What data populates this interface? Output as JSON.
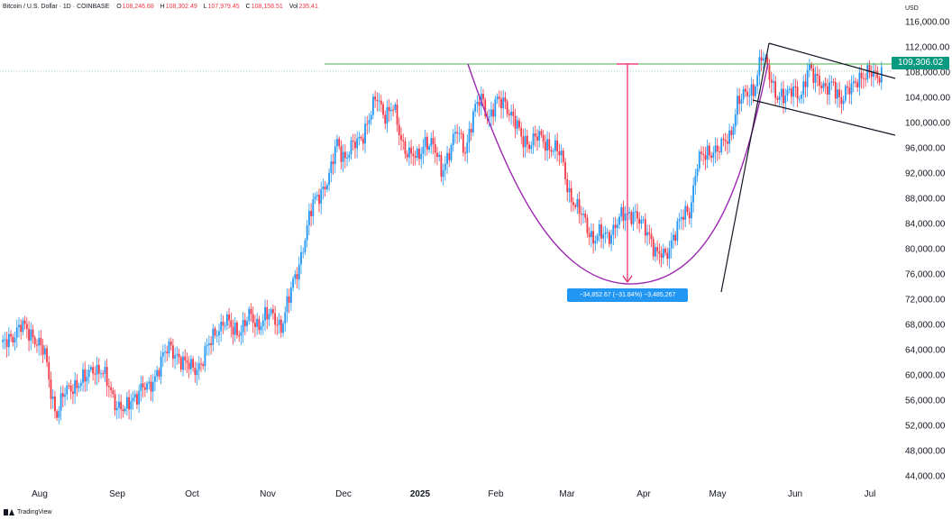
{
  "header": {
    "symbol": "Bitcoin / U.S. Dollar · 1D · COINBASE",
    "open_label": "O",
    "open": "108,246.68",
    "high_label": "H",
    "high": "108,302.49",
    "low_label": "L",
    "low": "107,979.45",
    "close_label": "C",
    "close": "108,158.51",
    "vol_label": "Vol",
    "vol": "235.41"
  },
  "currency": "USD",
  "last_price": "109,306.02",
  "measure_text": "−34,852.67 (−31.84%) −3,485,267",
  "brand": "TradingView",
  "colors": {
    "up": "#2196f3",
    "down": "#f23645",
    "cup": "#9c27b0",
    "flag": "#131722",
    "resistance": "#4caf50",
    "measure": "#e91e63"
  },
  "chart_data": {
    "type": "candlestick",
    "title": "Bitcoin / U.S. Dollar · 1D · COINBASE",
    "ylabel": "USD",
    "ylim": [
      42000,
      118000
    ],
    "y_ticks": [
      "116,000.00",
      "112,000.00",
      "108,000.00",
      "104,000.00",
      "100,000.00",
      "96,000.00",
      "92,000.00",
      "88,000.00",
      "84,000.00",
      "80,000.00",
      "76,000.00",
      "72,000.00",
      "68,000.00",
      "64,000.00",
      "60,000.00",
      "56,000.00",
      "52,000.00",
      "48,000.00",
      "44,000.00"
    ],
    "x_ticks": [
      {
        "label": "Aug",
        "bold": false
      },
      {
        "label": "Sep",
        "bold": false
      },
      {
        "label": "Oct",
        "bold": false
      },
      {
        "label": "Nov",
        "bold": false
      },
      {
        "label": "Dec",
        "bold": false
      },
      {
        "label": "2025",
        "bold": true
      },
      {
        "label": "Feb",
        "bold": false
      },
      {
        "label": "Mar",
        "bold": false
      },
      {
        "label": "Apr",
        "bold": false
      },
      {
        "label": "May",
        "bold": false
      },
      {
        "label": "Jun",
        "bold": false
      },
      {
        "label": "Jul",
        "bold": false
      }
    ],
    "anchors": [
      [
        0,
        64000
      ],
      [
        4,
        66000
      ],
      [
        10,
        67500
      ],
      [
        16,
        66500
      ],
      [
        22,
        63000
      ],
      [
        26,
        56000
      ],
      [
        28,
        54000
      ],
      [
        32,
        57000
      ],
      [
        36,
        58500
      ],
      [
        42,
        59000
      ],
      [
        46,
        61500
      ],
      [
        50,
        60500
      ],
      [
        54,
        58000
      ],
      [
        58,
        55500
      ],
      [
        62,
        54000
      ],
      [
        66,
        56500
      ],
      [
        70,
        58000
      ],
      [
        74,
        57500
      ],
      [
        80,
        62500
      ],
      [
        84,
        64000
      ],
      [
        88,
        63500
      ],
      [
        92,
        61500
      ],
      [
        96,
        61000
      ],
      [
        100,
        62000
      ],
      [
        104,
        64500
      ],
      [
        108,
        67500
      ],
      [
        112,
        68500
      ],
      [
        116,
        67000
      ],
      [
        120,
        67500
      ],
      [
        124,
        69000
      ],
      [
        128,
        68000
      ],
      [
        132,
        69500
      ],
      [
        136,
        69000
      ],
      [
        140,
        68000
      ],
      [
        144,
        72000
      ],
      [
        148,
        76500
      ],
      [
        152,
        82000
      ],
      [
        156,
        87000
      ],
      [
        160,
        89500
      ],
      [
        164,
        91000
      ],
      [
        168,
        97000
      ],
      [
        172,
        94500
      ],
      [
        176,
        96000
      ],
      [
        180,
        98000
      ],
      [
        184,
        100500
      ],
      [
        188,
        104000
      ],
      [
        192,
        101500
      ],
      [
        196,
        102000
      ],
      [
        200,
        97500
      ],
      [
        204,
        95000
      ],
      [
        208,
        94000
      ],
      [
        212,
        97500
      ],
      [
        216,
        96000
      ],
      [
        220,
        92500
      ],
      [
        224,
        95500
      ],
      [
        228,
        98500
      ],
      [
        232,
        96000
      ],
      [
        236,
        101000
      ],
      [
        240,
        104000
      ],
      [
        244,
        101000
      ],
      [
        248,
        103000
      ],
      [
        252,
        103500
      ],
      [
        256,
        100500
      ],
      [
        260,
        97500
      ],
      [
        264,
        97000
      ],
      [
        268,
        97500
      ],
      [
        272,
        97000
      ],
      [
        276,
        96000
      ],
      [
        280,
        94500
      ],
      [
        284,
        89000
      ],
      [
        288,
        86000
      ],
      [
        292,
        84500
      ],
      [
        296,
        81500
      ],
      [
        300,
        82000
      ],
      [
        304,
        82500
      ],
      [
        308,
        84000
      ],
      [
        312,
        85500
      ],
      [
        316,
        86000
      ],
      [
        320,
        83500
      ],
      [
        324,
        82500
      ],
      [
        328,
        79000
      ],
      [
        332,
        78500
      ],
      [
        336,
        82500
      ],
      [
        340,
        84500
      ],
      [
        344,
        86000
      ],
      [
        348,
        94000
      ],
      [
        352,
        94500
      ],
      [
        356,
        96000
      ],
      [
        360,
        96000
      ],
      [
        364,
        97500
      ],
      [
        368,
        103500
      ],
      [
        372,
        104000
      ],
      [
        376,
        105500
      ],
      [
        380,
        110500
      ],
      [
        384,
        107500
      ],
      [
        388,
        104500
      ],
      [
        392,
        103500
      ],
      [
        396,
        106000
      ],
      [
        400,
        104000
      ],
      [
        404,
        108500
      ],
      [
        408,
        107500
      ],
      [
        412,
        104500
      ],
      [
        416,
        106500
      ],
      [
        420,
        103500
      ],
      [
        424,
        105000
      ],
      [
        428,
        107500
      ],
      [
        432,
        107000
      ],
      [
        436,
        108000
      ],
      [
        440,
        108000
      ]
    ],
    "n_days": 441,
    "annotations": [
      "cup",
      "flag-channel",
      "resistance",
      "measure"
    ]
  }
}
